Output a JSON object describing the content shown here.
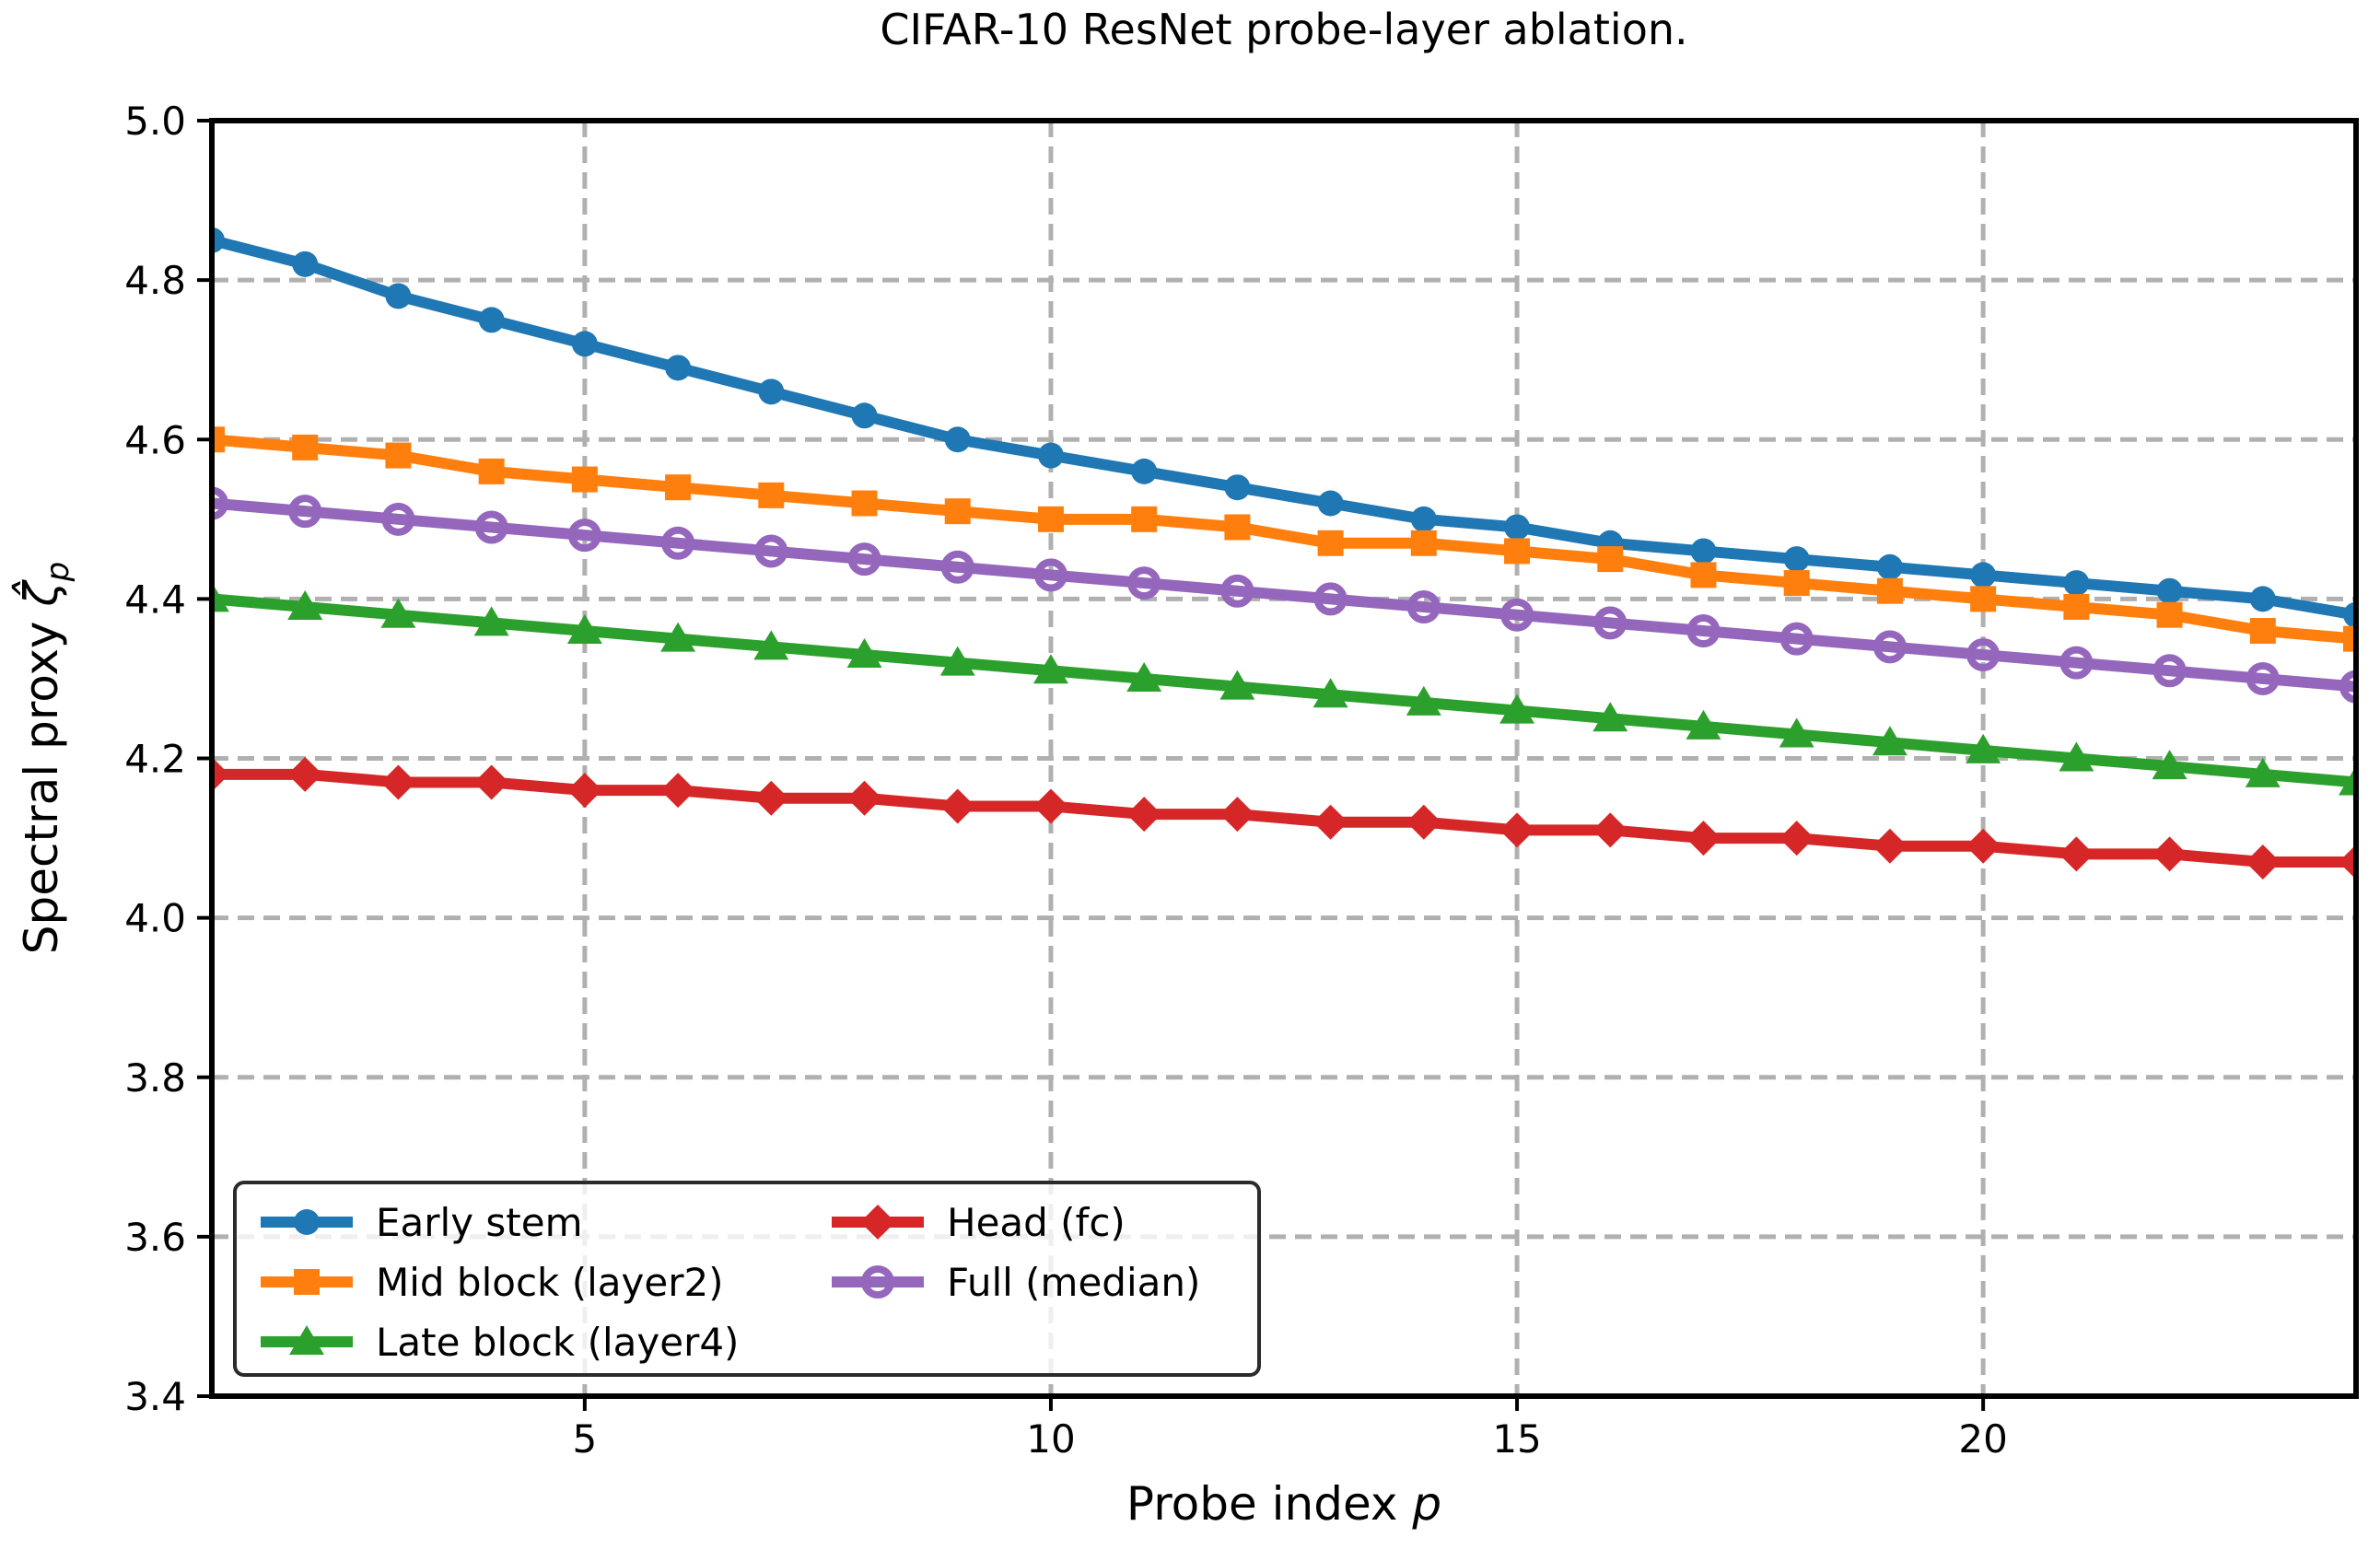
{
  "chart_data": {
    "type": "line",
    "title": "CIFAR-10 ResNet probe-layer ablation.",
    "xlabel": {
      "prefix": "Probe index ",
      "symbol": "p"
    },
    "ylabel": {
      "prefix": "Spectral proxy ",
      "symbol": "ζ̂",
      "subscript": "p"
    },
    "xlim": [
      1,
      24
    ],
    "ylim": [
      3.4,
      5.0
    ],
    "xticks": [
      5,
      10,
      15,
      20
    ],
    "yticks": [
      3.4,
      3.6,
      3.8,
      4.0,
      4.2,
      4.4,
      4.6,
      4.8,
      5.0
    ],
    "ytick_labels": [
      "3.4",
      "3.6",
      "3.8",
      "4.0",
      "4.2",
      "4.4",
      "4.6",
      "4.8",
      "5.0"
    ],
    "grid": true,
    "grid_color": "#b0b0b0",
    "x": [
      1,
      2,
      3,
      4,
      5,
      6,
      7,
      8,
      9,
      10,
      11,
      12,
      13,
      14,
      15,
      16,
      17,
      18,
      19,
      20,
      21,
      22,
      23,
      24
    ],
    "series": [
      {
        "name": "Early stem",
        "color": "#1f77b4",
        "marker": "circle",
        "values": [
          4.85,
          4.82,
          4.78,
          4.75,
          4.72,
          4.69,
          4.66,
          4.63,
          4.6,
          4.58,
          4.56,
          4.54,
          4.52,
          4.5,
          4.49,
          4.47,
          4.46,
          4.45,
          4.44,
          4.43,
          4.42,
          4.41,
          4.4,
          4.38
        ]
      },
      {
        "name": "Mid block (layer2)",
        "color": "#ff7f0e",
        "marker": "square",
        "values": [
          4.6,
          4.59,
          4.58,
          4.56,
          4.55,
          4.54,
          4.53,
          4.52,
          4.51,
          4.5,
          4.5,
          4.49,
          4.47,
          4.47,
          4.46,
          4.45,
          4.43,
          4.42,
          4.41,
          4.4,
          4.39,
          4.38,
          4.36,
          4.35
        ]
      },
      {
        "name": "Late block (layer4)",
        "color": "#2ca02c",
        "marker": "triangle",
        "values": [
          4.4,
          4.39,
          4.38,
          4.37,
          4.36,
          4.35,
          4.34,
          4.33,
          4.32,
          4.31,
          4.3,
          4.29,
          4.28,
          4.27,
          4.26,
          4.25,
          4.24,
          4.23,
          4.22,
          4.21,
          4.2,
          4.19,
          4.18,
          4.17
        ]
      },
      {
        "name": "Head (fc)",
        "color": "#d62728",
        "marker": "diamond",
        "values": [
          4.18,
          4.18,
          4.17,
          4.17,
          4.16,
          4.16,
          4.15,
          4.15,
          4.14,
          4.14,
          4.13,
          4.13,
          4.12,
          4.12,
          4.11,
          4.11,
          4.1,
          4.1,
          4.09,
          4.09,
          4.08,
          4.08,
          4.07,
          4.07
        ]
      },
      {
        "name": "Full (median)",
        "color": "#9467bd",
        "marker": "circle-open",
        "values": [
          4.52,
          4.51,
          4.5,
          4.49,
          4.48,
          4.47,
          4.46,
          4.45,
          4.44,
          4.43,
          4.42,
          4.41,
          4.4,
          4.39,
          4.38,
          4.37,
          4.36,
          4.35,
          4.34,
          4.33,
          4.32,
          4.31,
          4.3,
          4.29
        ]
      }
    ],
    "legend": {
      "position": "lower left",
      "columns": [
        [
          0,
          1,
          2
        ],
        [
          3,
          4
        ]
      ],
      "labels": [
        "Early stem",
        "Mid block (layer2)",
        "Late block (layer4)",
        "Head (fc)",
        "Full (median)"
      ]
    }
  }
}
